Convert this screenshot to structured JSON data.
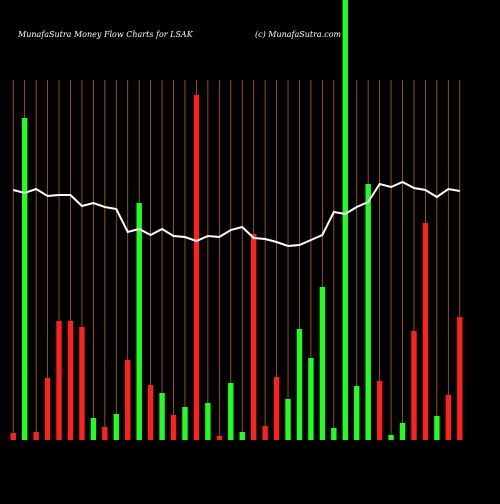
{
  "chart_data": {
    "type": "bar",
    "title": "MunafaSutra  Money Flow  Charts for LSAK",
    "subtitle": "(c) MunafaSutra.com",
    "categories": [
      null,
      null,
      null,
      null,
      null,
      null,
      null,
      null,
      null,
      null,
      null,
      null,
      null,
      null,
      null,
      null,
      null,
      null,
      null,
      null,
      null,
      null,
      null,
      null,
      null,
      null,
      null,
      null,
      null,
      null,
      null,
      null,
      null,
      null,
      null,
      null,
      null,
      null,
      null,
      null
    ],
    "values": [
      7,
      322,
      8,
      62,
      119,
      119,
      113,
      22,
      13,
      26,
      80,
      237,
      55,
      47,
      25,
      33,
      345,
      37,
      4,
      57,
      8,
      206,
      14,
      63,
      41,
      111,
      82,
      153,
      12,
      440,
      54,
      256,
      59,
      5,
      17,
      109,
      217,
      24,
      45,
      123
    ],
    "colors": [
      "#ff2020",
      "#20ff20",
      "#ff2020",
      "#ff2020",
      "#ff2020",
      "#ff2020",
      "#ff2020",
      "#20ff20",
      "#ff2020",
      "#20ff20",
      "#ff2020",
      "#20ff20",
      "#ff2020",
      "#20ff20",
      "#ff2020",
      "#20ff20",
      "#ff2020",
      "#20ff20",
      "#ff2020",
      "#20ff20",
      "#20ff20",
      "#ff2020",
      "#ff2020",
      "#ff2020",
      "#20ff20",
      "#20ff20",
      "#20ff20",
      "#20ff20",
      "#20ff20",
      "#20ff20",
      "#20ff20",
      "#20ff20",
      "#ff2020",
      "#20ff20",
      "#20ff20",
      "#ff2020",
      "#ff2020",
      "#20ff20",
      "#ff2020",
      "#ff2020"
    ],
    "line_values": [
      250,
      247,
      251,
      244,
      245,
      245,
      234,
      237,
      233,
      231,
      208,
      211,
      205,
      211,
      204,
      203,
      199,
      204,
      203,
      210,
      213,
      202,
      201,
      198,
      194,
      195,
      200,
      205,
      228,
      226,
      233,
      238,
      256,
      253,
      258,
      252,
      250,
      243,
      251,
      249
    ],
    "line_color": "#ffffff",
    "grid_color": "#b8660b",
    "ylim": [
      0,
      440
    ],
    "grid": true
  }
}
